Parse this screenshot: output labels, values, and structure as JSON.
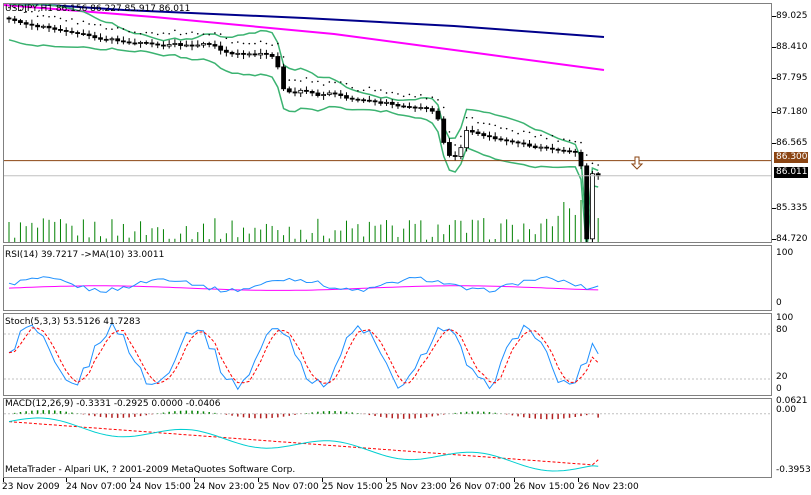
{
  "main_chart": {
    "header": "USDJPY,H1  86.156 86.227 85.917 86.011",
    "price_labels": [
      "89.025",
      "88.410",
      "87.795",
      "87.180",
      "86.565",
      "85.335",
      "84.720"
    ],
    "level_label": "86.300",
    "current_price": "86.011",
    "colors": {
      "level": "#8b4513",
      "bull": "#ffffff",
      "bear": "#000000",
      "volume": "#008000",
      "ma_fast": "#ff00ff",
      "ma_slow": "#00008b",
      "bands": "#3cb371"
    }
  },
  "rsi": {
    "header": "RSI(14) 39.7217  ->MA(10) 33.0011",
    "labels": [
      "100",
      "0"
    ]
  },
  "stoch": {
    "header": "Stoch(5,3,3) 53.5126 41.7283",
    "labels": [
      "100",
      "80",
      "20",
      "0"
    ]
  },
  "macd": {
    "header": "MACD(12,26,9) -0.3331 -0.2925 0.0000 -0.0406",
    "labels": [
      "0.0621",
      "0.00",
      "-0.3953"
    ],
    "footer": "MetaTrader - Alpari UK, ? 2001-2009 MetaQuotes Software Corp."
  },
  "time_axis": [
    "23 Nov 2009",
    "24 Nov 07:00",
    "24 Nov 15:00",
    "24 Nov 23:00",
    "25 Nov 07:00",
    "25 Nov 15:00",
    "25 Nov 23:00",
    "26 Nov 07:00",
    "26 Nov 15:00",
    "26 Nov 23:00"
  ],
  "chart_data": {
    "type": "candlestick",
    "symbol": "USDJPY",
    "timeframe": "H1",
    "ohlc_last": {
      "open": 86.156,
      "high": 86.227,
      "low": 85.917,
      "close": 86.011
    },
    "y_range": [
      84.72,
      89.25
    ],
    "closes": [
      89.02,
      88.99,
      88.95,
      88.92,
      88.9,
      88.87,
      88.88,
      88.85,
      88.82,
      88.8,
      88.78,
      88.76,
      88.74,
      88.73,
      88.7,
      88.66,
      88.63,
      88.62,
      88.64,
      88.6,
      88.58,
      88.56,
      88.55,
      88.57,
      88.56,
      88.54,
      88.52,
      88.5,
      88.53,
      88.55,
      88.51,
      88.52,
      88.5,
      88.52,
      88.55,
      88.53,
      88.5,
      88.42,
      88.38,
      88.35,
      88.36,
      88.34,
      88.35,
      88.33,
      88.36,
      88.34,
      88.3,
      88.1,
      87.68,
      87.62,
      87.6,
      87.65,
      87.63,
      87.6,
      87.55,
      87.57,
      87.6,
      87.58,
      87.55,
      87.5,
      87.48,
      87.47,
      87.46,
      87.45,
      87.43,
      87.4,
      87.42,
      87.38,
      87.35,
      87.34,
      87.33,
      87.31,
      87.32,
      87.3,
      87.25,
      87.1,
      86.65,
      86.4,
      86.38,
      86.55,
      86.88,
      86.85,
      86.82,
      86.78,
      86.76,
      86.72,
      86.7,
      86.68,
      86.66,
      86.64,
      86.62,
      86.58,
      86.55,
      86.56,
      86.54,
      86.52,
      86.5,
      86.49,
      86.48,
      86.46,
      86.2,
      84.8,
      86.05,
      86.01
    ],
    "volume_max": 300,
    "rsi": {
      "value": 39.7217,
      "ma": 33.0011,
      "range": [
        0,
        100
      ]
    },
    "stochastic": {
      "k": 53.5126,
      "d": 41.7283,
      "levels": [
        20,
        80
      ],
      "range": [
        0,
        100
      ]
    },
    "macd": {
      "macd": -0.3331,
      "signal": -0.2925,
      "range": [
        -0.3953,
        0.0621
      ]
    }
  }
}
